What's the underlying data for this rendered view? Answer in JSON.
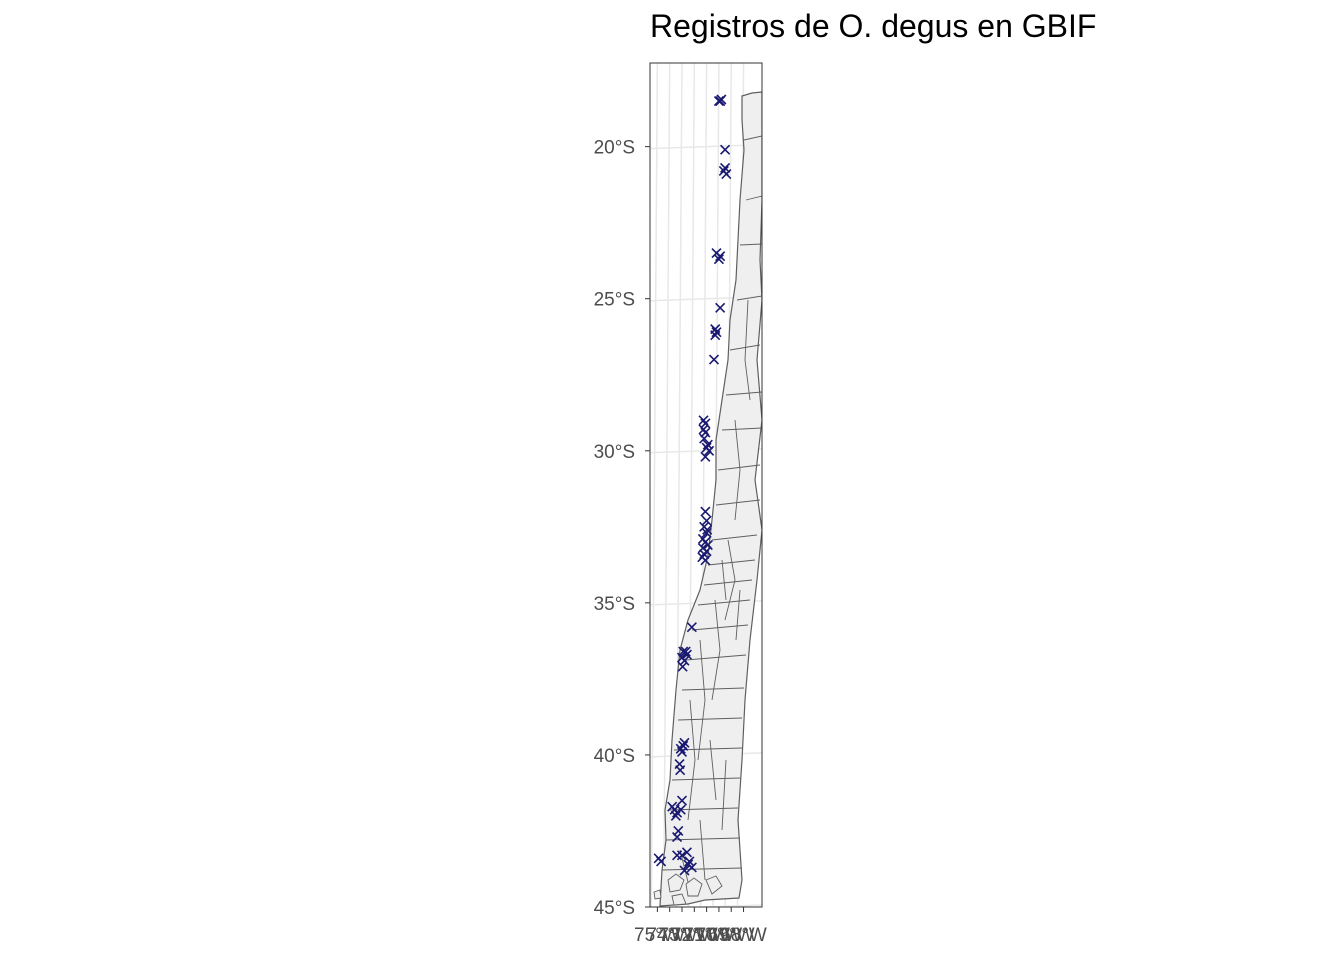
{
  "title": "Registros de O. degus en GBIF",
  "map": {
    "lat_range": [
      -45.0,
      -17.25
    ],
    "lon_range": [
      -75.6,
      -66.5
    ],
    "lat_ticks": [
      {
        "value": -20,
        "label": "20°S"
      },
      {
        "value": -25,
        "label": "25°S"
      },
      {
        "value": -30,
        "label": "30°S"
      },
      {
        "value": -35,
        "label": "35°S"
      },
      {
        "value": -40,
        "label": "40°S"
      },
      {
        "value": -45,
        "label": "45°S"
      }
    ],
    "lon_ticks": [
      {
        "value": -75,
        "label": "75°W"
      },
      {
        "value": -74,
        "label": "74°W"
      },
      {
        "value": -73,
        "label": "73°W"
      },
      {
        "value": -72,
        "label": "72°W"
      },
      {
        "value": -71,
        "label": "71°W"
      },
      {
        "value": -70,
        "label": "70°W"
      },
      {
        "value": -69,
        "label": "69°W"
      },
      {
        "value": -68,
        "label": "68°W"
      }
    ],
    "colors": {
      "land_fill": "#efefef",
      "border": "#5f5f5f",
      "points": "#191970",
      "graticule": "#e8e8e8",
      "panel_border": "#333333"
    }
  },
  "records": [
    {
      "lon": -69.9,
      "lat": -18.5
    },
    {
      "lon": -70.0,
      "lat": -18.5
    },
    {
      "lon": -69.8,
      "lat": -18.45
    },
    {
      "lon": -69.5,
      "lat": -20.1
    },
    {
      "lon": -69.6,
      "lat": -20.8
    },
    {
      "lon": -69.4,
      "lat": -20.9
    },
    {
      "lon": -69.5,
      "lat": -20.7
    },
    {
      "lon": -70.2,
      "lat": -23.5
    },
    {
      "lon": -70.0,
      "lat": -23.7
    },
    {
      "lon": -69.9,
      "lat": -23.6
    },
    {
      "lon": -69.9,
      "lat": -25.3
    },
    {
      "lon": -70.3,
      "lat": -26.0
    },
    {
      "lon": -70.2,
      "lat": -26.1
    },
    {
      "lon": -70.3,
      "lat": -26.2
    },
    {
      "lon": -70.4,
      "lat": -27.0
    },
    {
      "lon": -71.25,
      "lat": -29.0
    },
    {
      "lon": -71.1,
      "lat": -29.1
    },
    {
      "lon": -71.25,
      "lat": -29.3
    },
    {
      "lon": -71.1,
      "lat": -29.4
    },
    {
      "lon": -71.2,
      "lat": -29.6
    },
    {
      "lon": -70.9,
      "lat": -29.8
    },
    {
      "lon": -71.0,
      "lat": -29.9
    },
    {
      "lon": -70.8,
      "lat": -30.0
    },
    {
      "lon": -71.1,
      "lat": -30.2
    },
    {
      "lon": -71.1,
      "lat": -32.0
    },
    {
      "lon": -71.0,
      "lat": -32.3
    },
    {
      "lon": -71.2,
      "lat": -32.5
    },
    {
      "lon": -71.0,
      "lat": -32.7
    },
    {
      "lon": -71.3,
      "lat": -32.9
    },
    {
      "lon": -71.1,
      "lat": -33.0
    },
    {
      "lon": -70.9,
      "lat": -33.1
    },
    {
      "lon": -71.3,
      "lat": -33.2
    },
    {
      "lon": -71.0,
      "lat": -33.3
    },
    {
      "lon": -71.2,
      "lat": -33.4
    },
    {
      "lon": -70.95,
      "lat": -32.6
    },
    {
      "lon": -71.35,
      "lat": -33.5
    },
    {
      "lon": -71.1,
      "lat": -33.6
    },
    {
      "lon": -72.2,
      "lat": -35.8
    },
    {
      "lon": -72.9,
      "lat": -36.6
    },
    {
      "lon": -72.7,
      "lat": -36.6
    },
    {
      "lon": -73.0,
      "lat": -36.8
    },
    {
      "lon": -72.8,
      "lat": -36.9
    },
    {
      "lon": -72.95,
      "lat": -37.1
    },
    {
      "lon": -72.6,
      "lat": -36.7
    },
    {
      "lon": -73.1,
      "lat": -39.8
    },
    {
      "lon": -72.9,
      "lat": -39.7
    },
    {
      "lon": -72.8,
      "lat": -39.6
    },
    {
      "lon": -73.0,
      "lat": -39.9
    },
    {
      "lon": -73.2,
      "lat": -40.3
    },
    {
      "lon": -73.15,
      "lat": -40.5
    },
    {
      "lon": -73.8,
      "lat": -41.7
    },
    {
      "lon": -73.6,
      "lat": -41.8
    },
    {
      "lon": -73.4,
      "lat": -41.9
    },
    {
      "lon": -73.1,
      "lat": -41.8
    },
    {
      "lon": -73.0,
      "lat": -41.5
    },
    {
      "lon": -73.5,
      "lat": -42.0
    },
    {
      "lon": -73.3,
      "lat": -42.5
    },
    {
      "lon": -73.4,
      "lat": -42.7
    },
    {
      "lon": -73.4,
      "lat": -43.3
    },
    {
      "lon": -73.0,
      "lat": -43.3
    },
    {
      "lon": -72.6,
      "lat": -43.2
    },
    {
      "lon": -72.4,
      "lat": -43.5
    },
    {
      "lon": -72.2,
      "lat": -43.7
    },
    {
      "lon": -72.5,
      "lat": -43.6
    },
    {
      "lon": -72.8,
      "lat": -43.8
    },
    {
      "lon": -74.9,
      "lat": -43.4
    },
    {
      "lon": -74.7,
      "lat": -43.5
    }
  ]
}
